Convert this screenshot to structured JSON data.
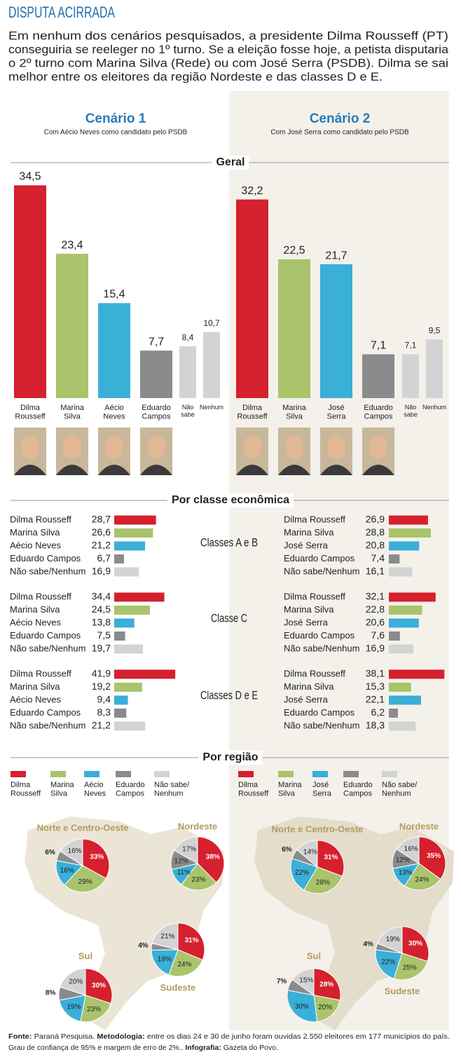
{
  "title": "DISPUTA ACIRRADA",
  "intro": [
    "Em nenhum dos cenários pesquisados, a presidente Dilma Rousseff (PT)",
    "conseguiria se reeleger no 1º turno. Se a eleição fosse hoje, a petista disputaria",
    "o 2º turno com Marina Silva (Rede) ou com José Serra (PSDB). Dilma se sai",
    "melhor entre os eleitores da região Nordeste e das classes D e E."
  ],
  "sections": [
    "Geral",
    "Por classe econômica",
    "Por região"
  ],
  "classes": [
    "Classes A e B",
    "Classe C",
    "Classes D e E"
  ],
  "scenarios": [
    {
      "name": "Cenário 1",
      "subtitle": "Com Aécio Neves como candidato pelo PSDB",
      "geral": {
        "type": "bar",
        "categories": [
          "Dilma Rousseff",
          "Marina Silva",
          "Aécio Neves",
          "Eduardo Campos",
          "Não sabe",
          "Nenhum"
        ],
        "values": [
          34.5,
          23.4,
          15.4,
          7.7,
          8.4,
          10.7
        ],
        "value_labels": [
          "34,5",
          "23,4",
          "15,4",
          "7,7",
          "8,4",
          "10,7"
        ],
        "colors": [
          "#d5202d",
          "#a9c46b",
          "#3aafd8",
          "#8b8b8d",
          "#d3d3d5",
          "#d3d3d5"
        ]
      },
      "classes": {
        "type": "bar",
        "orientation": "horizontal",
        "categories": [
          "Dilma Rousseff",
          "Marina Silva",
          "Aécio Neves",
          "Eduardo Campos",
          "Não sabe/Nenhum"
        ],
        "colors": [
          "#d5202d",
          "#a9c46b",
          "#3aafd8",
          "#8b8b8d",
          "#d3d3d5"
        ],
        "groups": [
          {
            "values": [
              28.7,
              26.6,
              21.2,
              6.7,
              16.9
            ],
            "value_labels": [
              "28,7",
              "26,6",
              "21,2",
              "6,7",
              "16,9"
            ]
          },
          {
            "values": [
              34.4,
              24.5,
              13.8,
              7.5,
              19.7
            ],
            "value_labels": [
              "34,4",
              "24,5",
              "13,8",
              "7,5",
              "19,7"
            ]
          },
          {
            "values": [
              41.9,
              19.2,
              9.4,
              8.3,
              21.2
            ],
            "value_labels": [
              "41,9",
              "19,2",
              "9,4",
              "8,3",
              "21,2"
            ]
          }
        ]
      },
      "regions": {
        "type": "pie",
        "legend": [
          "Dilma Rousseff",
          "Marina Silva",
          "Aécio Neves",
          "Eduardo Campos",
          "Não sabe/ Nenhum"
        ],
        "colors": [
          "#d5202d",
          "#a9c46b",
          "#3aafd8",
          "#8b8b8d",
          "#d3d3d5"
        ],
        "pies": [
          {
            "name": "Norte e Centro-Oeste",
            "values": [
              33,
              29,
              16,
              6,
              16
            ],
            "value_labels": [
              "33%",
              "29%",
              "16%",
              "6%",
              "16%"
            ]
          },
          {
            "name": "Nordeste",
            "values": [
              38,
              23,
              11,
              12,
              17
            ],
            "value_labels": [
              "38%",
              "23%",
              "11%",
              "12%",
              "17%"
            ]
          },
          {
            "name": "Sudeste",
            "values": [
              31,
              24,
              19,
              4,
              21
            ],
            "value_labels": [
              "31%",
              "24%",
              "19%",
              "4%",
              "21%"
            ]
          },
          {
            "name": "Sul",
            "values": [
              30,
              23,
              19,
              8,
              20
            ],
            "value_labels": [
              "30%",
              "23%",
              "19%",
              "8%",
              "20%"
            ]
          }
        ]
      }
    },
    {
      "name": "Cenário 2",
      "subtitle": "Com José Serra  como candidato pelo PSDB",
      "geral": {
        "type": "bar",
        "categories": [
          "Dilma Rousseff",
          "Marina Silva",
          "José Serra",
          "Eduardo Campos",
          "Não sabe",
          "Nenhum"
        ],
        "values": [
          32.2,
          22.5,
          21.7,
          7.1,
          7.1,
          9.5
        ],
        "value_labels": [
          "32,2",
          "22,5",
          "21,7",
          "7,1",
          "7,1",
          "9,5"
        ],
        "colors": [
          "#d5202d",
          "#a9c46b",
          "#3aafd8",
          "#8b8b8d",
          "#d3d3d5",
          "#d3d3d5"
        ]
      },
      "classes": {
        "type": "bar",
        "orientation": "horizontal",
        "categories": [
          "Dilma Rousseff",
          "Marina Silva",
          "José Serra",
          "Eduardo Campos",
          "Não sabe/Nenhum"
        ],
        "colors": [
          "#d5202d",
          "#a9c46b",
          "#3aafd8",
          "#8b8b8d",
          "#d3d3d5"
        ],
        "groups": [
          {
            "values": [
              26.9,
              28.8,
              20.8,
              7.4,
              16.1
            ],
            "value_labels": [
              "26,9",
              "28,8",
              "20,8",
              "7,4",
              "16,1"
            ]
          },
          {
            "values": [
              32.1,
              22.8,
              20.6,
              7.6,
              16.9
            ],
            "value_labels": [
              "32,1",
              "22,8",
              "20,6",
              "7,6",
              "16,9"
            ]
          },
          {
            "values": [
              38.1,
              15.3,
              22.1,
              6.2,
              18.3
            ],
            "value_labels": [
              "38,1",
              "15,3",
              "22,1",
              "6,2",
              "18,3"
            ]
          }
        ]
      },
      "regions": {
        "type": "pie",
        "legend": [
          "Dilma Rousseff",
          "Marina Silva",
          "José Serra",
          "Eduardo Campos",
          "Não sabe/ Nenhum"
        ],
        "colors": [
          "#d5202d",
          "#a9c46b",
          "#3aafd8",
          "#8b8b8d",
          "#d3d3d5"
        ],
        "pies": [
          {
            "name": "Norte e Centro-Oeste",
            "values": [
              31,
              28,
              22,
              6,
              14
            ],
            "value_labels": [
              "31%",
              "28%",
              "22%",
              "6%",
              "14%"
            ]
          },
          {
            "name": "Nordeste",
            "values": [
              35,
              24,
              13,
              12,
              16
            ],
            "value_labels": [
              "35%",
              "24%",
              "13%",
              "12%",
              "16%"
            ]
          },
          {
            "name": "Sudeste",
            "values": [
              30,
              25,
              22,
              4,
              19
            ],
            "value_labels": [
              "30%",
              "25%",
              "22%",
              "4%",
              "19%"
            ]
          },
          {
            "name": "Sul",
            "values": [
              28,
              20,
              30,
              7,
              15
            ],
            "value_labels": [
              "28%",
              "20%",
              "30%",
              "7%",
              "15%"
            ]
          }
        ]
      }
    }
  ],
  "footer": {
    "fonte_label": "Fonte:",
    "fonte": "Paraná Pesquisa.",
    "metodologia_label": "Metodologia:",
    "metodologia": "entre os dias 24 e 30 de junho foram ouvidas 2.550 eleitores em 177 municípios do país.",
    "metodologia_2": "Grau de confiança de 95% e margem de erro de 2%..",
    "infografia_label": "Infografia:",
    "infografia": "Gazeta do Povo."
  }
}
